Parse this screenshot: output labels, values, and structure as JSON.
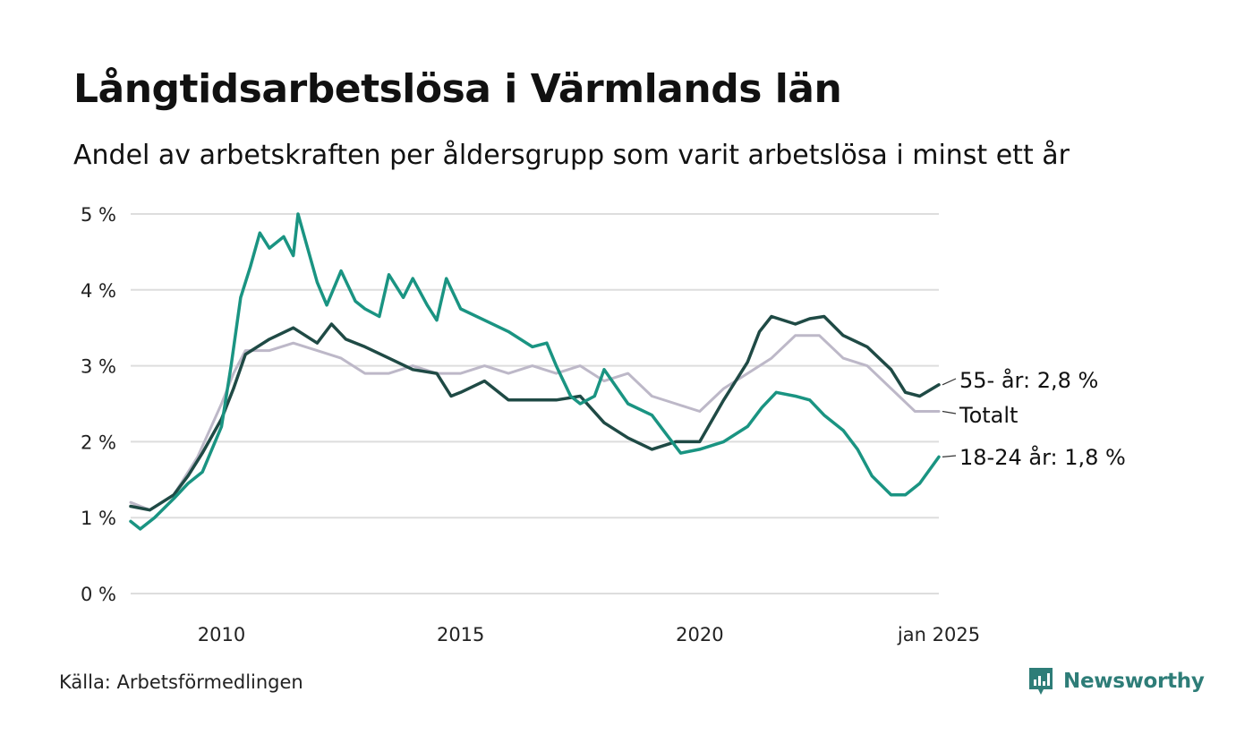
{
  "title": "Långtidsarbetslösa i Värmlands län",
  "subtitle": "Andel av arbetskraften per åldersgrupp som varit arbetslösa i minst ett år",
  "source": "Källa: Arbetsförmedlingen",
  "brand": {
    "name": "Newsworthy",
    "color": "#2e7d78"
  },
  "colors": {
    "series_55": "#1f4a45",
    "series_total": "#bdb8c8",
    "series_18_24": "#1a9482",
    "grid": "#dddddd"
  },
  "chart_data": {
    "type": "line",
    "title": "Långtidsarbetslösa i Värmlands län",
    "ylabel": "",
    "xlabel": "",
    "ylim": [
      0,
      5
    ],
    "xlim": [
      2008.1,
      2025.0
    ],
    "y_ticks": [
      0,
      1,
      2,
      3,
      4,
      5
    ],
    "y_tick_labels": [
      "0 %",
      "1 %",
      "2 %",
      "3 %",
      "4 %",
      "5 %"
    ],
    "x_ticks": [
      2010,
      2015,
      2020,
      2025.0
    ],
    "x_tick_labels": [
      "2010",
      "2015",
      "2020",
      "jan 2025"
    ],
    "series": [
      {
        "name": "Totalt",
        "label": "Totalt",
        "color": "#bdb8c8",
        "x": [
          2008.1,
          2008.5,
          2009.0,
          2009.5,
          2010.0,
          2010.25,
          2010.5,
          2011.0,
          2011.5,
          2012.0,
          2012.5,
          2013.0,
          2013.5,
          2014.0,
          2014.5,
          2015.0,
          2015.5,
          2016.0,
          2016.5,
          2017.0,
          2017.5,
          2018.0,
          2018.5,
          2019.0,
          2019.5,
          2020.0,
          2020.5,
          2021.0,
          2021.5,
          2022.0,
          2022.5,
          2023.0,
          2023.5,
          2024.0,
          2024.5,
          2025.0
        ],
        "y": [
          1.2,
          1.1,
          1.3,
          1.8,
          2.5,
          2.9,
          3.2,
          3.2,
          3.3,
          3.2,
          3.1,
          2.9,
          2.9,
          3.0,
          2.9,
          2.9,
          3.0,
          2.9,
          3.0,
          2.9,
          3.0,
          2.8,
          2.9,
          2.6,
          2.5,
          2.4,
          2.7,
          2.9,
          3.1,
          3.4,
          3.4,
          3.1,
          3.0,
          2.7,
          2.4,
          2.4
        ]
      },
      {
        "name": "55- år",
        "label": "55- år: 2,8 %",
        "color": "#1f4a45",
        "x": [
          2008.1,
          2008.5,
          2009.0,
          2009.3,
          2009.6,
          2010.0,
          2010.25,
          2010.5,
          2011.0,
          2011.5,
          2012.0,
          2012.3,
          2012.6,
          2013.0,
          2013.5,
          2014.0,
          2014.5,
          2014.8,
          2015.0,
          2015.5,
          2016.0,
          2016.5,
          2017.0,
          2017.5,
          2018.0,
          2018.5,
          2019.0,
          2019.5,
          2020.0,
          2020.5,
          2021.0,
          2021.25,
          2021.5,
          2022.0,
          2022.3,
          2022.6,
          2023.0,
          2023.5,
          2024.0,
          2024.3,
          2024.6,
          2025.0
        ],
        "y": [
          1.15,
          1.1,
          1.3,
          1.55,
          1.85,
          2.3,
          2.7,
          3.15,
          3.35,
          3.5,
          3.3,
          3.55,
          3.35,
          3.25,
          3.1,
          2.95,
          2.9,
          2.6,
          2.65,
          2.8,
          2.55,
          2.55,
          2.55,
          2.6,
          2.25,
          2.05,
          1.9,
          2.0,
          2.0,
          2.55,
          3.05,
          3.45,
          3.65,
          3.55,
          3.62,
          3.65,
          3.4,
          3.25,
          2.95,
          2.65,
          2.6,
          2.75
        ]
      },
      {
        "name": "18-24 år",
        "label": "18-24 år: 1,8 %",
        "color": "#1a9482",
        "x": [
          2008.1,
          2008.3,
          2008.6,
          2009.0,
          2009.3,
          2009.6,
          2010.0,
          2010.2,
          2010.4,
          2010.6,
          2010.8,
          2011.0,
          2011.3,
          2011.5,
          2011.6,
          2011.8,
          2012.0,
          2012.2,
          2012.5,
          2012.8,
          2013.0,
          2013.3,
          2013.5,
          2013.8,
          2014.0,
          2014.3,
          2014.5,
          2014.7,
          2015.0,
          2015.5,
          2016.0,
          2016.5,
          2016.8,
          2017.0,
          2017.3,
          2017.5,
          2017.8,
          2018.0,
          2018.5,
          2019.0,
          2019.3,
          2019.6,
          2020.0,
          2020.5,
          2021.0,
          2021.3,
          2021.6,
          2022.0,
          2022.3,
          2022.6,
          2023.0,
          2023.3,
          2023.6,
          2024.0,
          2024.3,
          2024.6,
          2025.0
        ],
        "y": [
          0.95,
          0.85,
          1.0,
          1.25,
          1.45,
          1.6,
          2.2,
          3.0,
          3.9,
          4.3,
          4.75,
          4.55,
          4.7,
          4.45,
          5.0,
          4.55,
          4.1,
          3.8,
          4.25,
          3.85,
          3.75,
          3.65,
          4.2,
          3.9,
          4.15,
          3.8,
          3.6,
          4.15,
          3.75,
          3.6,
          3.45,
          3.25,
          3.3,
          3.0,
          2.6,
          2.5,
          2.6,
          2.95,
          2.5,
          2.35,
          2.1,
          1.85,
          1.9,
          2.0,
          2.2,
          2.45,
          2.65,
          2.6,
          2.55,
          2.35,
          2.15,
          1.9,
          1.55,
          1.3,
          1.3,
          1.45,
          1.8
        ]
      }
    ]
  }
}
